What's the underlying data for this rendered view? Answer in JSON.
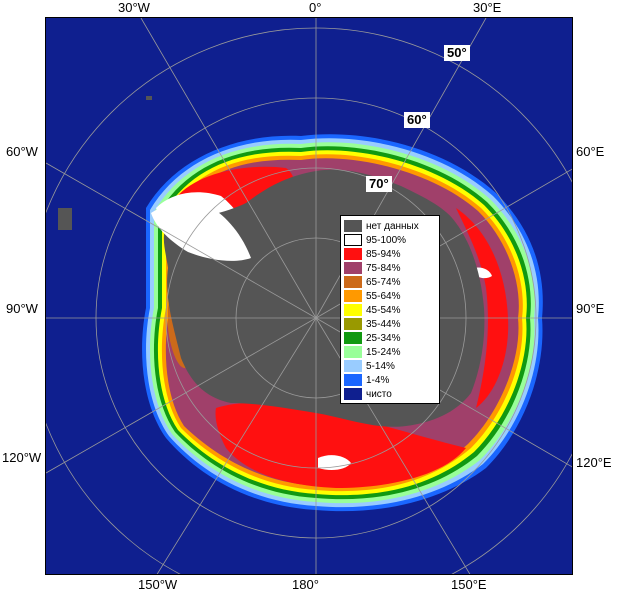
{
  "map": {
    "top_labels": [
      {
        "id": "30w",
        "text": "30°W"
      },
      {
        "id": "0",
        "text": "0°"
      },
      {
        "id": "30e",
        "text": "30°E"
      }
    ],
    "bottom_labels": [
      {
        "id": "150w",
        "text": "150°W"
      },
      {
        "id": "180",
        "text": "180°"
      },
      {
        "id": "150e",
        "text": "150°E"
      }
    ],
    "left_labels": [
      {
        "id": "60w",
        "text": "60°W"
      },
      {
        "id": "90w",
        "text": "90°W"
      },
      {
        "id": "120w",
        "text": "120°W"
      }
    ],
    "right_labels": [
      {
        "id": "60e",
        "text": "60°E"
      },
      {
        "id": "90e",
        "text": "90°E"
      },
      {
        "id": "120e",
        "text": "120°E"
      }
    ],
    "latitude_labels": [
      {
        "id": "50",
        "text": "50°"
      },
      {
        "id": "60",
        "text": "60°"
      },
      {
        "id": "70",
        "text": "70°"
      }
    ],
    "colors": {
      "ocean": "#0f1f8f",
      "land": "#555555",
      "grid": "#9a9a9a"
    }
  },
  "legend": {
    "items": [
      {
        "label": "нет данных",
        "color": "#555555"
      },
      {
        "label": "95-100%",
        "color": "#ffffff"
      },
      {
        "label": "85-94%",
        "color": "#ff1010"
      },
      {
        "label": "75-84%",
        "color": "#a0406a"
      },
      {
        "label": "65-74%",
        "color": "#cc6a1a"
      },
      {
        "label": "55-64%",
        "color": "#ff9900"
      },
      {
        "label": "45-54%",
        "color": "#ffff00"
      },
      {
        "label": "35-44%",
        "color": "#999900"
      },
      {
        "label": "25-34%",
        "color": "#119911"
      },
      {
        "label": "15-24%",
        "color": "#99ff99"
      },
      {
        "label": "5-14%",
        "color": "#99ccff"
      },
      {
        "label": "1-4%",
        "color": "#1a66ff"
      },
      {
        "label": "чисто",
        "color": "#0f1f8f"
      }
    ]
  }
}
